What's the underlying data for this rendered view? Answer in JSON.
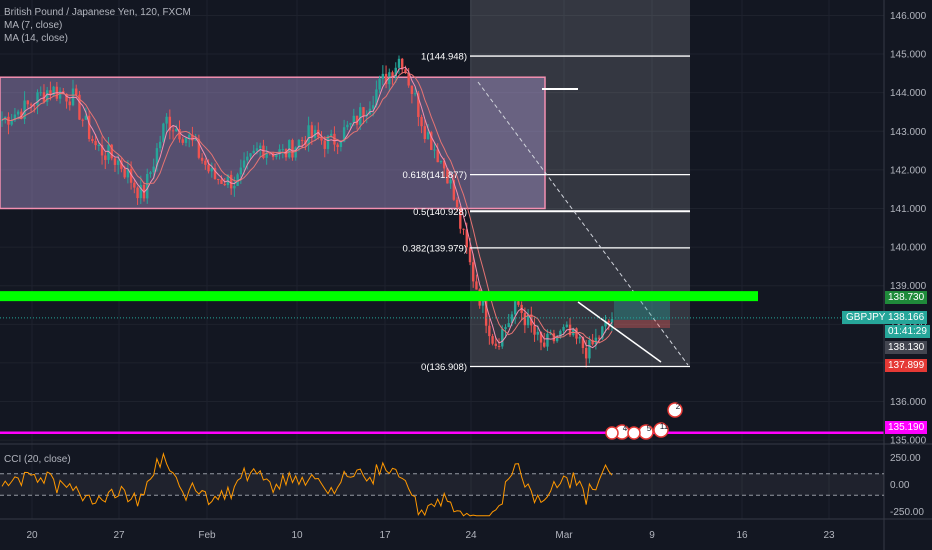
{
  "header": {
    "symbol_line": "British Pound / Japanese Yen, 120, FXCM",
    "ma1": "MA (7, close)",
    "ma2": "MA (14, close)"
  },
  "chart_data": {
    "type": "candlestick",
    "symbol": "GBPJPY",
    "timeframe": "120",
    "price_ylim": [
      134.9,
      146.4
    ],
    "price_ticks": [
      135.0,
      136.0,
      137.0,
      138.0,
      139.0,
      140.0,
      141.0,
      142.0,
      143.0,
      144.0,
      145.0,
      146.0
    ],
    "price_tick_labels": [
      "135.000",
      "136.000",
      "137.000",
      "138.000",
      "139.000",
      "140.000",
      "141.000",
      "142.000",
      "143.000",
      "144.000",
      "145.000",
      "146.000"
    ],
    "x_ticks": [
      "20",
      "27",
      "Feb",
      "10",
      "17",
      "24",
      "Mar",
      "9",
      "16",
      "23"
    ],
    "close_path": [
      {
        "t": "Jan 20",
        "close": 143.3
      },
      {
        "t": "Jan 22",
        "close": 143.6
      },
      {
        "t": "Jan 24",
        "close": 144.1
      },
      {
        "t": "Jan 26",
        "close": 143.9
      },
      {
        "t": "Jan 28",
        "close": 142.6
      },
      {
        "t": "Jan 30",
        "close": 142.2
      },
      {
        "t": "Feb 2",
        "close": 141.3
      },
      {
        "t": "Feb 4",
        "close": 143.3
      },
      {
        "t": "Feb 6",
        "close": 142.8
      },
      {
        "t": "Feb 8",
        "close": 141.8
      },
      {
        "t": "Feb 10",
        "close": 141.7
      },
      {
        "t": "Feb 12",
        "close": 142.6
      },
      {
        "t": "Feb 14",
        "close": 142.4
      },
      {
        "t": "Feb 16",
        "close": 142.9
      },
      {
        "t": "Feb 18",
        "close": 142.7
      },
      {
        "t": "Feb 20",
        "close": 143.2
      },
      {
        "t": "Feb 22",
        "close": 144.1
      },
      {
        "t": "Feb 24",
        "close": 144.95
      },
      {
        "t": "Feb 26",
        "close": 143.1
      },
      {
        "t": "Feb 28",
        "close": 141.9
      },
      {
        "t": "Mar 1",
        "close": 139.4
      },
      {
        "t": "Mar 2",
        "close": 137.5
      },
      {
        "t": "Mar 3",
        "close": 138.5
      },
      {
        "t": "Mar 4",
        "close": 137.4
      },
      {
        "t": "Mar 5",
        "close": 137.8
      },
      {
        "t": "Mar 6",
        "close": 137.3
      },
      {
        "t": "Mar 6b",
        "close": 138.166
      }
    ],
    "channel": {
      "upper": 144.4,
      "lower": 141.0
    },
    "fibonacci": [
      {
        "label": "1(144.948)",
        "level": 144.948
      },
      {
        "label": "0.618(141.877)",
        "level": 141.877
      },
      {
        "label": "0.5(140.928)",
        "level": 140.928
      },
      {
        "label": "0.382(139.979)",
        "level": 139.979
      },
      {
        "label": "0(136.908)",
        "level": 136.908
      }
    ],
    "horizontal_levels": [
      {
        "price": 138.73,
        "color": "#00ff00"
      },
      {
        "price": 135.19,
        "color": "#ff00ff"
      }
    ],
    "cci": {
      "ylim": [
        -320,
        330
      ],
      "ticks": [
        250,
        0,
        -250
      ],
      "tick_labels": [
        "250.00",
        "0.00",
        "-250.00"
      ],
      "bands": [
        100,
        -100
      ]
    }
  },
  "price_labels": {
    "level_green": "138.730",
    "symbol": "GBPJPY",
    "last": "138.166",
    "countdown": "01:41:29",
    "mid": "138.130",
    "red": "137.899",
    "level_magenta": "135.190"
  },
  "cci_legend": "CCI (20, close)",
  "event_icons": [
    "4",
    "5",
    "11",
    "2"
  ],
  "colors": {
    "background": "#131722",
    "up": "#26a69a",
    "down": "#ef5350",
    "ma7": "#f48fb1",
    "ma14": "#ef5350",
    "cci": "#ff9800",
    "green_level": "#00ff00",
    "magenta_level": "#ff00ff"
  }
}
